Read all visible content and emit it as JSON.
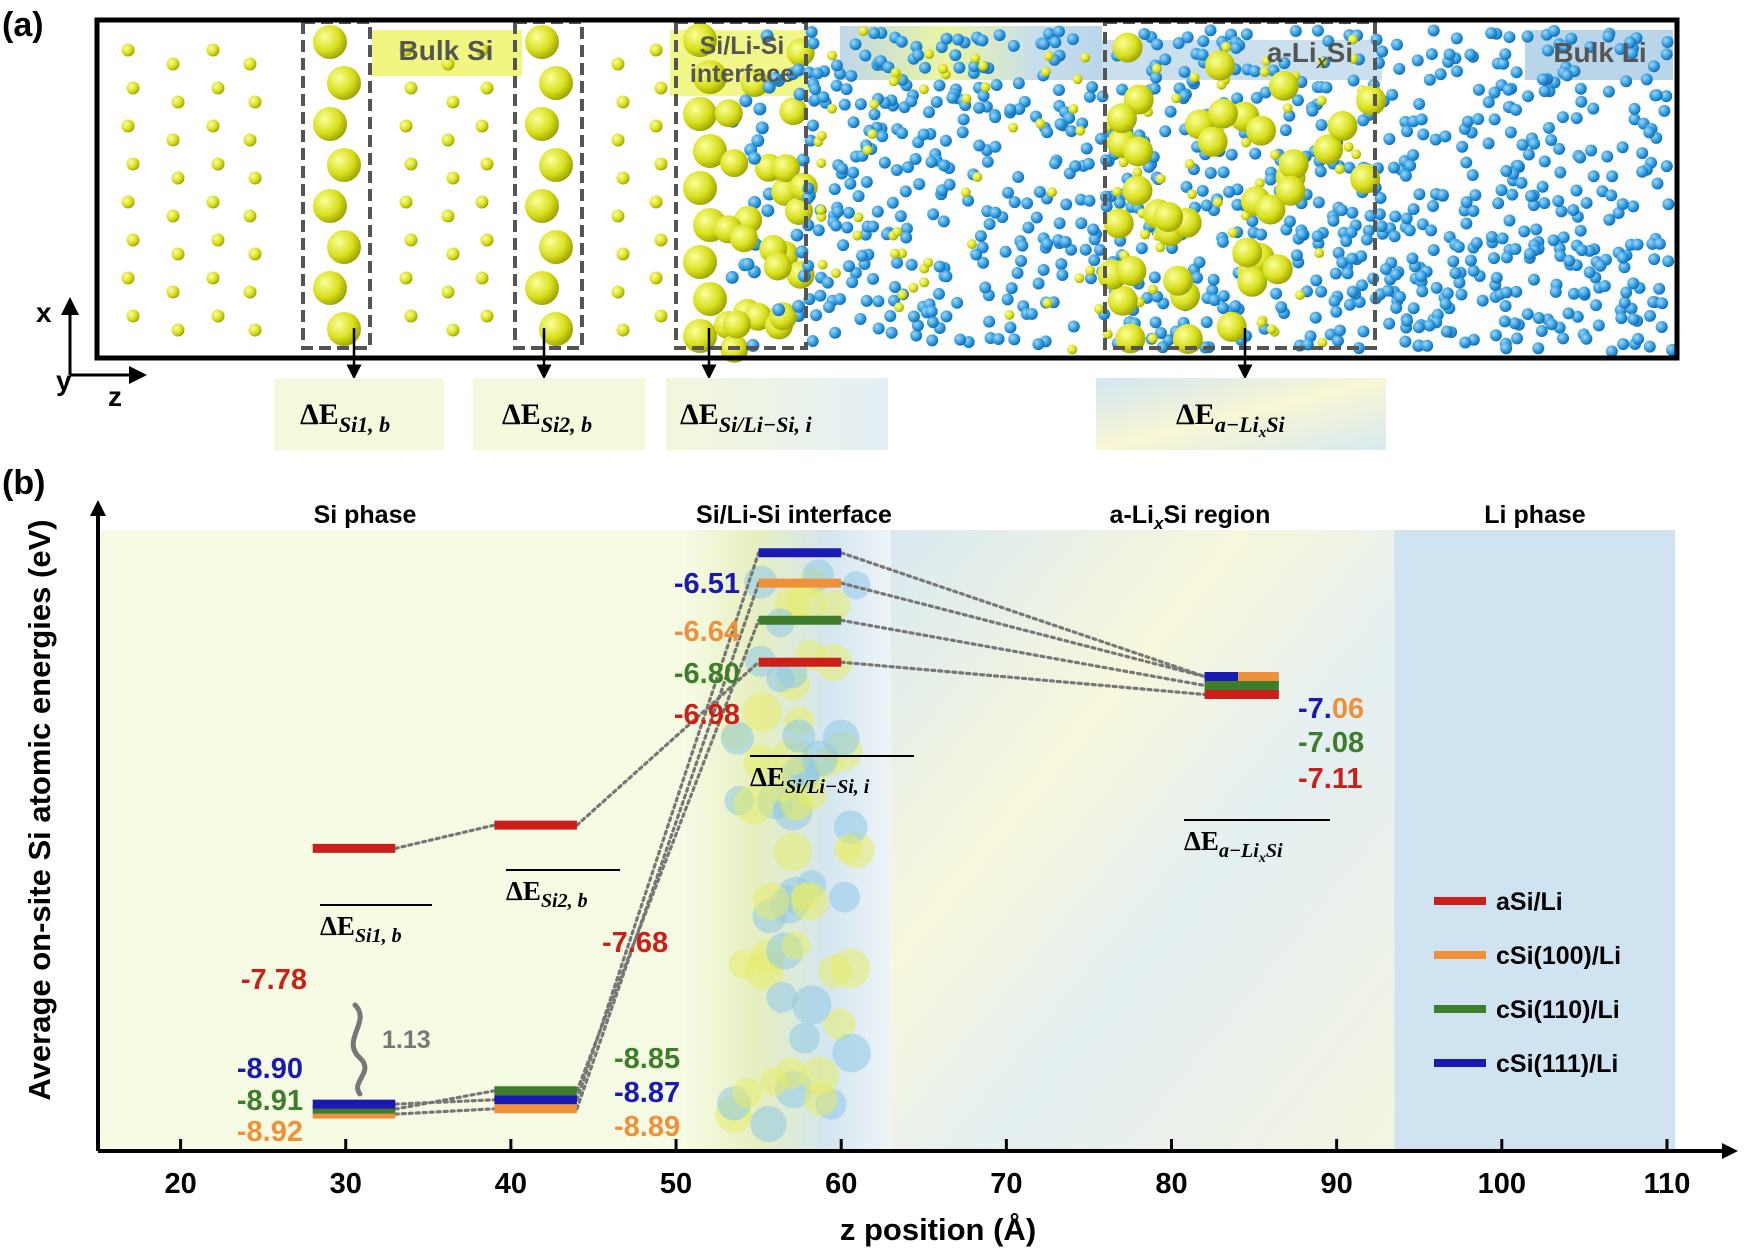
{
  "panel_a": {
    "label": "(a)",
    "regions": {
      "bulk_si": "Bulk Si",
      "interface_line1": "Si/Li-Si",
      "interface_line2": "interface",
      "a_lisi_pre": "a-Li",
      "a_lisi_sub": "x",
      "a_lisi_post": "Si",
      "bulk_li": "Bulk Li"
    },
    "axes": {
      "x": "x",
      "y": "y",
      "z": "z"
    },
    "energy_boxes": [
      {
        "delta": "ΔE",
        "sub": "Si1, b"
      },
      {
        "delta": "ΔE",
        "sub": "Si2, b"
      },
      {
        "delta": "ΔE",
        "sub": "Si/Li−Si, i"
      },
      {
        "delta": "ΔE",
        "sub_pre": "a−Li",
        "sub_sub": "x",
        "sub_post": "Si"
      }
    ]
  },
  "chart_data": {
    "type": "scatter",
    "panel_label": "(b)",
    "xlabel": "z position (Å)",
    "ylabel": "Average on-site Si atomic energies (eV)",
    "xlim": [
      15,
      112
    ],
    "ylim": [
      -9.08,
      -6.18
    ],
    "xticks": [
      20,
      30,
      40,
      50,
      60,
      70,
      80,
      90,
      100,
      110
    ],
    "regions": [
      {
        "name_pre": "Si phase",
        "range": [
          15,
          50.5
        ],
        "color": "#f6fbe4"
      },
      {
        "name_pre": "Si/Li-Si interface",
        "range": [
          50.5,
          63
        ],
        "color": "#eef3f4"
      },
      {
        "name_pre": "a-Li",
        "name_sub": "x",
        "name_post": "Si region",
        "range": [
          63,
          93.5
        ],
        "color": "#e9f2f3"
      },
      {
        "name_pre": "Li phase",
        "range": [
          93.5,
          110.5
        ],
        "color": "#cfe4f0"
      }
    ],
    "series": [
      {
        "name": "aSi/Li",
        "color": "#cc1f1a",
        "values": [
          -7.78,
          -7.68,
          -6.98,
          -7.11
        ]
      },
      {
        "name": "cSi(100)/Li",
        "color": "#f0913a",
        "values": [
          -8.92,
          -8.89,
          -6.64,
          -7.06
        ]
      },
      {
        "name": "cSi(110)/Li",
        "color": "#3e7d2a",
        "values": [
          -8.91,
          -8.85,
          -6.8,
          -7.08
        ]
      },
      {
        "name": "cSi(111)/Li",
        "color": "#1a1ab3",
        "values": [
          -8.9,
          -8.87,
          -6.51,
          -7.06
        ]
      }
    ],
    "sites": [
      {
        "label_delta": "ΔE",
        "label_sub": "Si1, b",
        "x": [
          28,
          33
        ]
      },
      {
        "label_delta": "ΔE",
        "label_sub": "Si2, b",
        "x": [
          39,
          44
        ]
      },
      {
        "label_delta": "ΔE",
        "label_sub": "Si/Li−Si, i",
        "x": [
          55,
          60
        ]
      },
      {
        "label_delta": "ΔE",
        "label_sub_pre": "a−Li",
        "label_sub_sub": "x",
        "label_sub_post": "Si",
        "x": [
          82,
          86.5
        ]
      }
    ],
    "value_labels": {
      "si1": {
        "aSi": "-7.78",
        "c111": "-8.90",
        "c110": "-8.91",
        "c100": "-8.92"
      },
      "si2": {
        "aSi": "-7.68",
        "c110": "-8.85",
        "c111": "-8.87",
        "c100": "-8.89"
      },
      "interface": {
        "c111": "-6.51",
        "c100": "-6.64",
        "c110": "-6.80",
        "aSi": "-6.98"
      },
      "alisi": {
        "c111_a": "-7.",
        "c111_b": "06",
        "c110": "-7.08",
        "aSi": "-7.11"
      }
    },
    "gap_annotation": "1.13"
  }
}
